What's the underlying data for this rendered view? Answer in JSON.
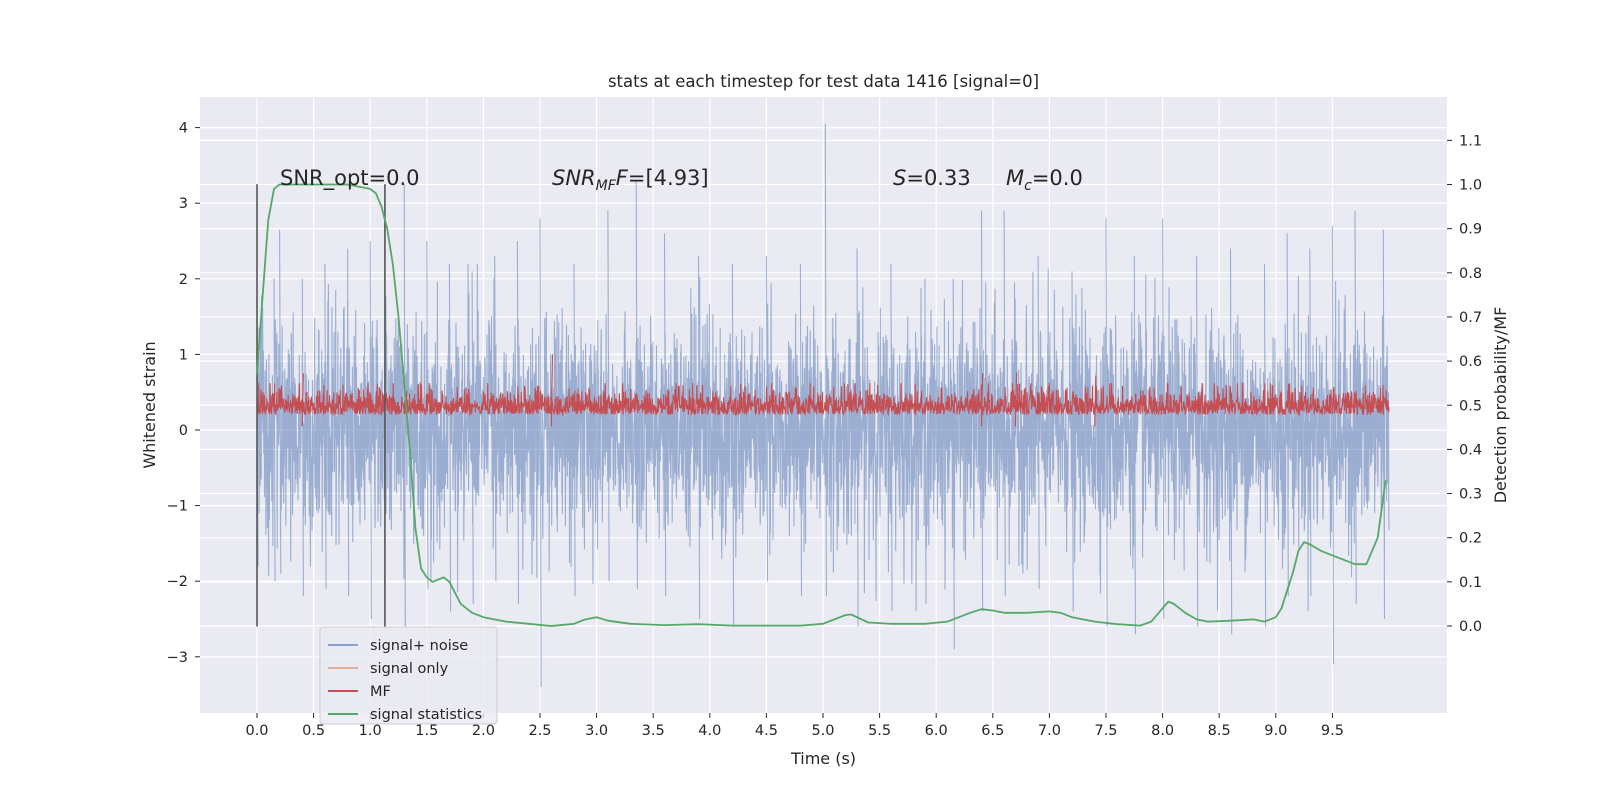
{
  "chart_data": {
    "type": "line",
    "title": "stats at each timestep for test data 1416 [signal=0]",
    "xlabel": "Time (s)",
    "ylabel": "Whitened strain",
    "y2label": "Detection probability/MF",
    "xlim": [
      -0.5,
      10.5
    ],
    "ylim": [
      -3.75,
      4.35
    ],
    "y2lim": [
      -0.2,
      1.2
    ],
    "grid": true,
    "legend_position": "lower-left",
    "x_ticks": [
      "0.0",
      "0.5",
      "1.0",
      "1.5",
      "2.0",
      "2.5",
      "3.0",
      "3.5",
      "4.0",
      "4.5",
      "5.0",
      "5.5",
      "6.0",
      "6.5",
      "7.0",
      "7.5",
      "8.0",
      "8.5",
      "9.0",
      "9.5"
    ],
    "y_ticks": [
      "4",
      "3",
      "2",
      "1",
      "0",
      "−1",
      "−2",
      "−3"
    ],
    "y2_ticks": [
      "1.1",
      "1.0",
      "0.9",
      "0.8",
      "0.7",
      "0.6",
      "0.5",
      "0.4",
      "0.3",
      "0.2",
      "0.1",
      "0.0"
    ],
    "annotations": {
      "snr_opt": "SNR_opt=0.0",
      "snr_mf_main": "SNR",
      "snr_mf_sub": "MF",
      "snr_mf_italic": "F",
      "snr_mf_value": "=[4.93]",
      "s_italic": "S",
      "s_value": "=0.33",
      "mc_italic": "M",
      "mc_sub": "c",
      "mc_value": "=0.0"
    },
    "vertical_markers_x": [
      0.0,
      1.13
    ],
    "series": [
      {
        "name": "signal+ noise",
        "color": "#4c72b0",
        "description_range": [
          -3.4,
          4.05
        ],
        "peaks": [
          [
            0.0,
            1.9,
            -1.8
          ],
          [
            0.15,
            2.0,
            -2.0
          ],
          [
            0.2,
            2.65,
            -1.9
          ],
          [
            0.4,
            2.0,
            -2.2
          ],
          [
            0.6,
            2.2,
            -2.1
          ],
          [
            0.8,
            2.4,
            -2.2
          ],
          [
            1.0,
            2.5,
            -2.5
          ],
          [
            1.3,
            3.25,
            -2.6
          ],
          [
            1.5,
            2.5,
            -2.1
          ],
          [
            1.7,
            2.2,
            -2.4
          ],
          [
            1.9,
            2.1,
            -2.3
          ],
          [
            2.1,
            2.3,
            -2.0
          ],
          [
            2.3,
            2.5,
            -2.3
          ],
          [
            2.5,
            2.8,
            -3.4
          ],
          [
            2.8,
            2.2,
            -2.2
          ],
          [
            3.1,
            2.9,
            -2.0
          ],
          [
            3.35,
            3.3,
            -2.1
          ],
          [
            3.6,
            2.6,
            -2.2
          ],
          [
            3.9,
            2.3,
            -2.5
          ],
          [
            4.2,
            2.2,
            -2.6
          ],
          [
            4.5,
            2.3,
            -2.0
          ],
          [
            4.8,
            2.2,
            -2.2
          ],
          [
            5.02,
            4.05,
            -2.2
          ],
          [
            5.3,
            2.4,
            -2.6
          ],
          [
            5.6,
            2.2,
            -2.4
          ],
          [
            5.9,
            2.0,
            -2.3
          ],
          [
            6.15,
            2.0,
            -2.9
          ],
          [
            6.4,
            2.9,
            -2.4
          ],
          [
            6.6,
            2.9,
            -2.2
          ],
          [
            6.9,
            2.3,
            -2.1
          ],
          [
            7.2,
            2.1,
            -2.4
          ],
          [
            7.5,
            2.8,
            -2.6
          ],
          [
            7.75,
            2.3,
            -2.7
          ],
          [
            8.0,
            2.8,
            -2.5
          ],
          [
            8.3,
            2.3,
            -2.6
          ],
          [
            8.6,
            2.4,
            -2.7
          ],
          [
            8.9,
            2.2,
            -2.6
          ],
          [
            9.1,
            2.6,
            -2.2
          ],
          [
            9.3,
            2.4,
            -2.2
          ],
          [
            9.5,
            2.7,
            -3.1
          ],
          [
            9.7,
            2.9,
            -2.3
          ],
          [
            9.95,
            2.65,
            -2.5
          ]
        ]
      },
      {
        "name": "signal only",
        "color": "#dd8452",
        "x": [
          0.0,
          10.0
        ],
        "y": [
          0.0,
          0.0
        ]
      },
      {
        "name": "MF",
        "color": "#c44e52",
        "description_range": [
          0.0,
          1.0
        ],
        "baseline": 0.25,
        "peaks": [
          [
            0.4,
            0.75
          ],
          [
            2.6,
            1.0
          ],
          [
            6.4,
            0.75
          ],
          [
            6.7,
            0.76
          ],
          [
            7.4,
            0.72
          ]
        ]
      },
      {
        "name": "signal statistics",
        "color": "#55a868",
        "axis": "right",
        "x": [
          0.0,
          0.05,
          0.1,
          0.15,
          0.2,
          0.3,
          0.5,
          0.8,
          1.0,
          1.05,
          1.1,
          1.15,
          1.2,
          1.25,
          1.3,
          1.35,
          1.4,
          1.45,
          1.5,
          1.55,
          1.6,
          1.65,
          1.7,
          1.8,
          1.9,
          2.0,
          2.2,
          2.4,
          2.6,
          2.8,
          2.9,
          3.0,
          3.1,
          3.3,
          3.6,
          3.9,
          4.2,
          4.5,
          4.8,
          5.0,
          5.1,
          5.2,
          5.25,
          5.3,
          5.4,
          5.6,
          5.9,
          6.1,
          6.2,
          6.3,
          6.4,
          6.5,
          6.6,
          6.8,
          7.0,
          7.1,
          7.2,
          7.4,
          7.6,
          7.8,
          7.9,
          8.0,
          8.05,
          8.1,
          8.2,
          8.3,
          8.4,
          8.6,
          8.8,
          8.9,
          9.0,
          9.05,
          9.1,
          9.15,
          9.2,
          9.25,
          9.3,
          9.4,
          9.5,
          9.6,
          9.7,
          9.8,
          9.9,
          9.97
        ],
        "y": [
          0.57,
          0.75,
          0.92,
          0.99,
          1.0,
          1.0,
          1.0,
          1.0,
          0.99,
          0.98,
          0.95,
          0.9,
          0.82,
          0.7,
          0.55,
          0.4,
          0.22,
          0.13,
          0.11,
          0.1,
          0.105,
          0.11,
          0.1,
          0.05,
          0.03,
          0.02,
          0.01,
          0.005,
          0.0,
          0.005,
          0.015,
          0.02,
          0.012,
          0.005,
          0.002,
          0.004,
          0.001,
          0.001,
          0.001,
          0.005,
          0.015,
          0.025,
          0.026,
          0.02,
          0.008,
          0.005,
          0.005,
          0.01,
          0.02,
          0.03,
          0.038,
          0.035,
          0.03,
          0.03,
          0.033,
          0.03,
          0.02,
          0.01,
          0.004,
          0.001,
          0.01,
          0.04,
          0.055,
          0.05,
          0.03,
          0.015,
          0.01,
          0.012,
          0.015,
          0.01,
          0.02,
          0.04,
          0.08,
          0.12,
          0.17,
          0.19,
          0.185,
          0.17,
          0.16,
          0.15,
          0.14,
          0.14,
          0.2,
          0.33
        ]
      }
    ]
  }
}
